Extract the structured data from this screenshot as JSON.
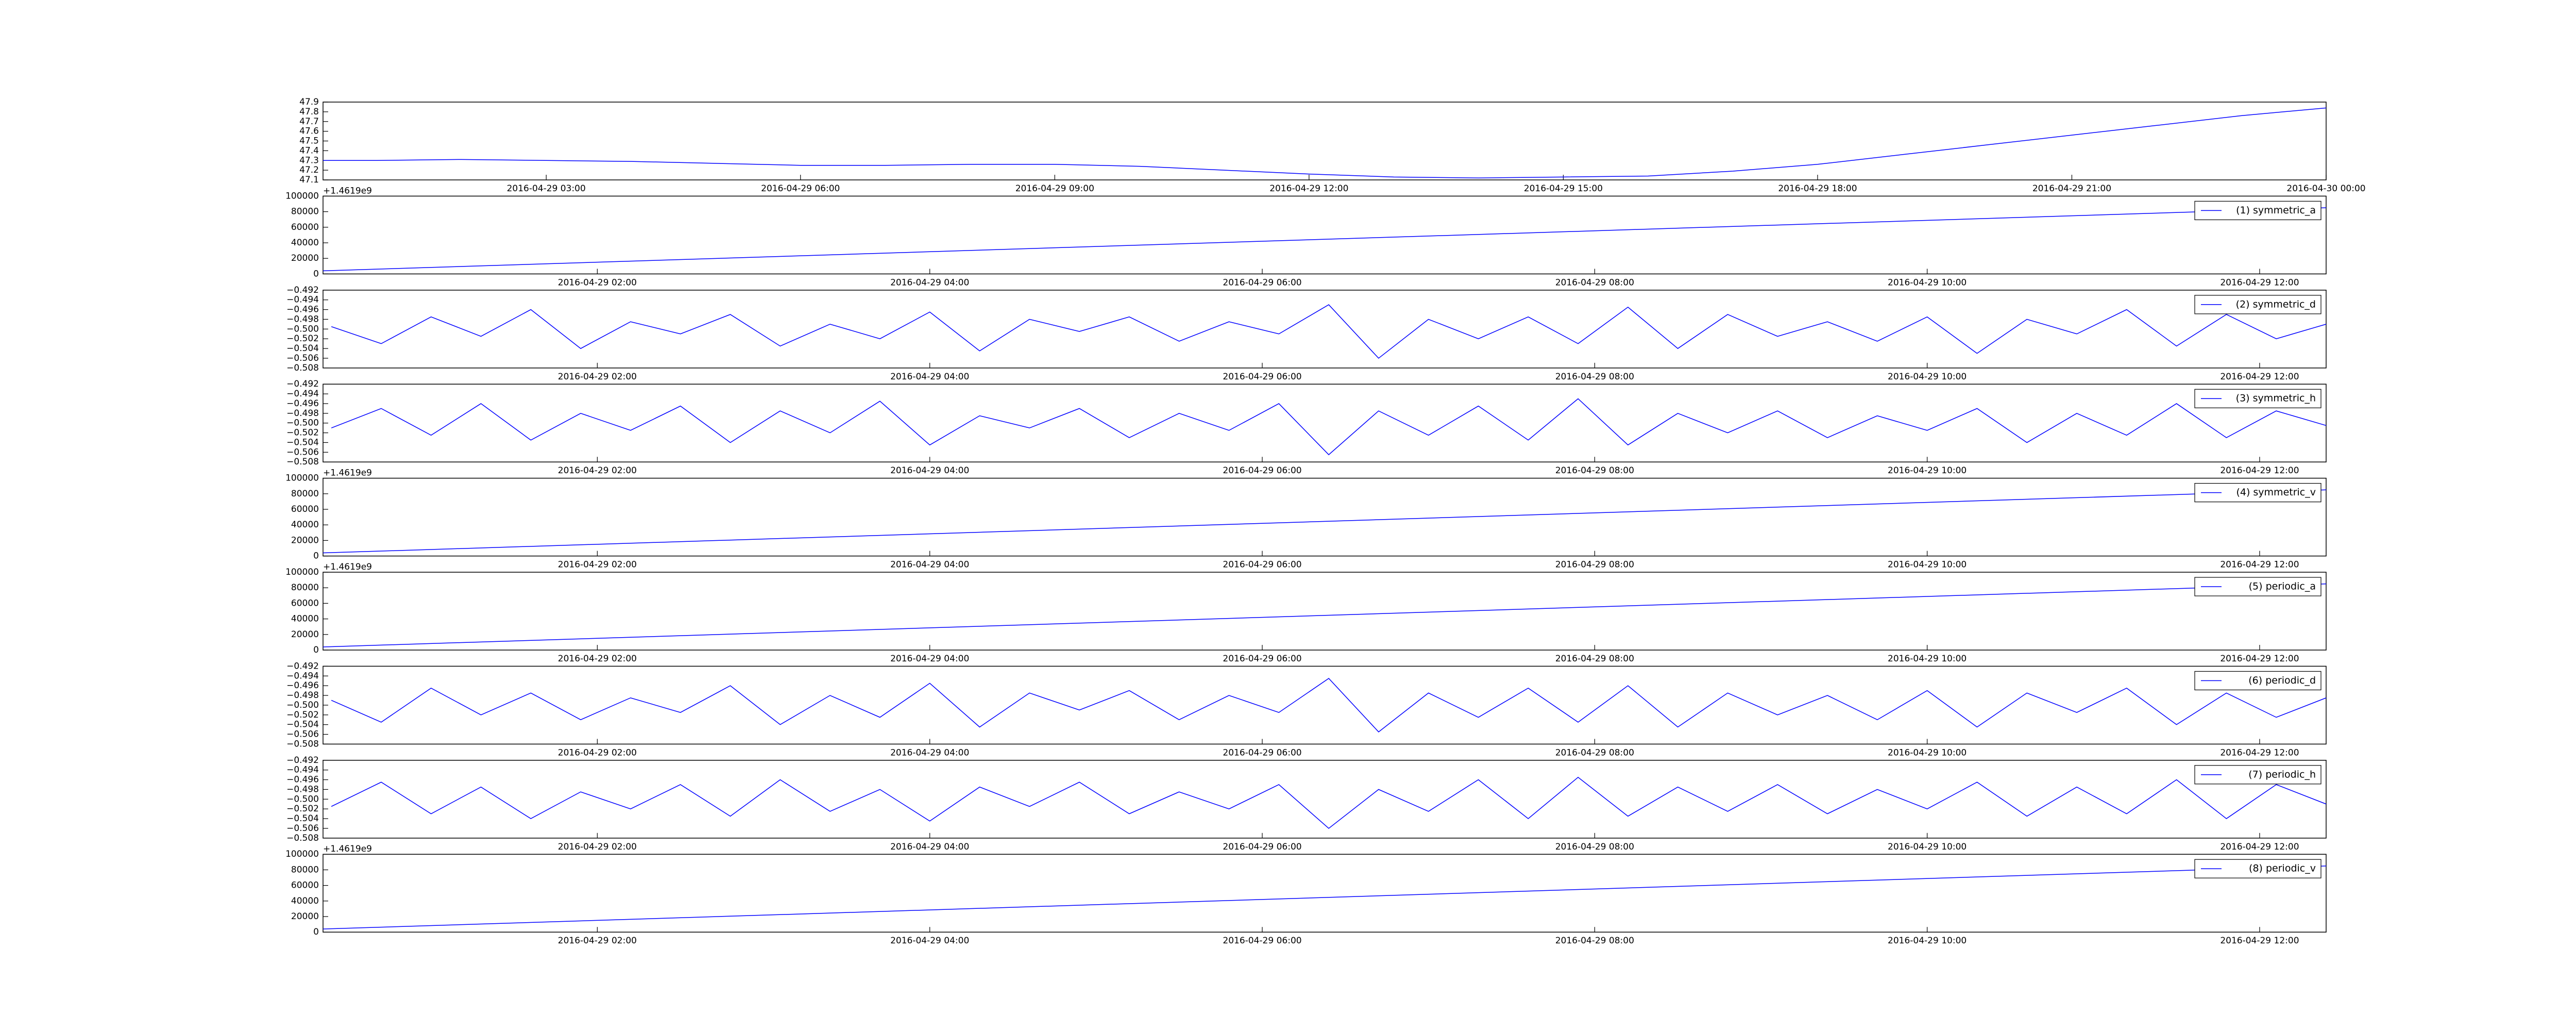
{
  "chart_data": [
    {
      "type": "line",
      "color": "#0000ff",
      "x": [
        "2016-04-29 00:22",
        "2016-04-29 01:00",
        "2016-04-29 02:00",
        "2016-04-29 03:00",
        "2016-04-29 04:00",
        "2016-04-29 05:00",
        "2016-04-29 06:00",
        "2016-04-29 07:00",
        "2016-04-29 08:00",
        "2016-04-29 09:00",
        "2016-04-29 10:00",
        "2016-04-29 11:00",
        "2016-04-29 12:00",
        "2016-04-29 13:00",
        "2016-04-29 14:00",
        "2016-04-29 15:00",
        "2016-04-29 16:00",
        "2016-04-29 17:00",
        "2016-04-29 18:00",
        "2016-04-29 19:00",
        "2016-04-29 20:00",
        "2016-04-29 21:00",
        "2016-04-29 22:00",
        "2016-04-29 23:00",
        "2016-04-30 00:00"
      ],
      "values": [
        47.3,
        47.3,
        47.31,
        47.3,
        47.29,
        47.27,
        47.25,
        47.25,
        47.26,
        47.26,
        47.24,
        47.2,
        47.16,
        47.13,
        47.12,
        47.13,
        47.14,
        47.19,
        47.26,
        47.36,
        47.46,
        47.56,
        47.66,
        47.76,
        47.84
      ],
      "xlim": [
        "2016-04-29 00:22",
        "2016-04-30 00:00"
      ],
      "xticks": [
        "2016-04-29 03:00",
        "2016-04-29 06:00",
        "2016-04-29 09:00",
        "2016-04-29 12:00",
        "2016-04-29 15:00",
        "2016-04-29 18:00",
        "2016-04-29 21:00",
        "2016-04-30 00:00"
      ],
      "ylim": [
        47.1,
        47.9
      ],
      "yticks": [
        47.1,
        47.2,
        47.3,
        47.4,
        47.5,
        47.6,
        47.7,
        47.8,
        47.9
      ],
      "grid": false
    },
    {
      "type": "line",
      "legend": "upper right",
      "y_offset_label": "+1.4619e9",
      "x": [
        "2016-04-29 00:21",
        "2016-04-29 12:24"
      ],
      "series": [
        {
          "name": "(1) symmetric_a",
          "color": "#0000ff",
          "values": [
            4000,
            85000
          ]
        }
      ],
      "xlim": [
        "2016-04-29 00:21",
        "2016-04-29 12:24"
      ],
      "xticks": [
        "2016-04-29 02:00",
        "2016-04-29 04:00",
        "2016-04-29 06:00",
        "2016-04-29 08:00",
        "2016-04-29 10:00",
        "2016-04-29 12:00"
      ],
      "ylim": [
        0,
        100000
      ],
      "yticks": [
        0,
        20000,
        40000,
        60000,
        80000,
        100000
      ],
      "grid": false
    },
    {
      "type": "line",
      "legend": "upper right",
      "x": [
        "2016-04-29 00:24",
        "2016-04-29 00:42",
        "2016-04-29 01:00",
        "2016-04-29 01:18",
        "2016-04-29 01:36",
        "2016-04-29 01:54",
        "2016-04-29 02:12",
        "2016-04-29 02:30",
        "2016-04-29 02:48",
        "2016-04-29 03:06",
        "2016-04-29 03:24",
        "2016-04-29 03:42",
        "2016-04-29 04:00",
        "2016-04-29 04:18",
        "2016-04-29 04:36",
        "2016-04-29 04:54",
        "2016-04-29 05:12",
        "2016-04-29 05:30",
        "2016-04-29 05:48",
        "2016-04-29 06:06",
        "2016-04-29 06:24",
        "2016-04-29 06:42",
        "2016-04-29 07:00",
        "2016-04-29 07:18",
        "2016-04-29 07:36",
        "2016-04-29 07:54",
        "2016-04-29 08:12",
        "2016-04-29 08:30",
        "2016-04-29 08:48",
        "2016-04-29 09:06",
        "2016-04-29 09:24",
        "2016-04-29 09:42",
        "2016-04-29 10:00",
        "2016-04-29 10:18",
        "2016-04-29 10:36",
        "2016-04-29 10:54",
        "2016-04-29 11:12",
        "2016-04-29 11:30",
        "2016-04-29 11:48",
        "2016-04-29 12:06",
        "2016-04-29 12:24"
      ],
      "series": [
        {
          "name": "(2) symmetric_d",
          "color": "#0000ff",
          "values": [
            -0.4995,
            -0.503,
            -0.4975,
            -0.5015,
            -0.496,
            -0.504,
            -0.4985,
            -0.501,
            -0.497,
            -0.5035,
            -0.499,
            -0.502,
            -0.4965,
            -0.5045,
            -0.498,
            -0.5005,
            -0.4975,
            -0.5025,
            -0.4985,
            -0.501,
            -0.495,
            -0.506,
            -0.498,
            -0.502,
            -0.4975,
            -0.503,
            -0.4955,
            -0.504,
            -0.497,
            -0.5015,
            -0.4985,
            -0.5025,
            -0.4975,
            -0.505,
            -0.498,
            -0.501,
            -0.496,
            -0.5035,
            -0.497,
            -0.502,
            -0.499
          ]
        }
      ],
      "xlim": [
        "2016-04-29 00:21",
        "2016-04-29 12:24"
      ],
      "xticks": [
        "2016-04-29 02:00",
        "2016-04-29 04:00",
        "2016-04-29 06:00",
        "2016-04-29 08:00",
        "2016-04-29 10:00",
        "2016-04-29 12:00"
      ],
      "ylim": [
        -0.508,
        -0.492
      ],
      "yticks": [
        {
          "value": -0.508,
          "label": "−0.508"
        },
        {
          "value": -0.506,
          "label": "−0.506"
        },
        {
          "value": -0.504,
          "label": "−0.504"
        },
        {
          "value": -0.502,
          "label": "−0.502"
        },
        {
          "value": -0.5,
          "label": "−0.500"
        },
        {
          "value": -0.498,
          "label": "−0.498"
        },
        {
          "value": -0.496,
          "label": "−0.496"
        },
        {
          "value": -0.494,
          "label": "−0.494"
        },
        {
          "value": -0.492,
          "label": "−0.492"
        }
      ],
      "grid": false
    },
    {
      "type": "line",
      "legend": "upper right",
      "x": [
        "2016-04-29 00:24",
        "2016-04-29 00:42",
        "2016-04-29 01:00",
        "2016-04-29 01:18",
        "2016-04-29 01:36",
        "2016-04-29 01:54",
        "2016-04-29 02:12",
        "2016-04-29 02:30",
        "2016-04-29 02:48",
        "2016-04-29 03:06",
        "2016-04-29 03:24",
        "2016-04-29 03:42",
        "2016-04-29 04:00",
        "2016-04-29 04:18",
        "2016-04-29 04:36",
        "2016-04-29 04:54",
        "2016-04-29 05:12",
        "2016-04-29 05:30",
        "2016-04-29 05:48",
        "2016-04-29 06:06",
        "2016-04-29 06:24",
        "2016-04-29 06:42",
        "2016-04-29 07:00",
        "2016-04-29 07:18",
        "2016-04-29 07:36",
        "2016-04-29 07:54",
        "2016-04-29 08:12",
        "2016-04-29 08:30",
        "2016-04-29 08:48",
        "2016-04-29 09:06",
        "2016-04-29 09:24",
        "2016-04-29 09:42",
        "2016-04-29 10:00",
        "2016-04-29 10:18",
        "2016-04-29 10:36",
        "2016-04-29 10:54",
        "2016-04-29 11:12",
        "2016-04-29 11:30",
        "2016-04-29 11:48",
        "2016-04-29 12:06",
        "2016-04-29 12:24"
      ],
      "series": [
        {
          "name": "(3) symmetric_h",
          "color": "#0000ff",
          "values": [
            -0.501,
            -0.497,
            -0.5025,
            -0.496,
            -0.5035,
            -0.498,
            -0.5015,
            -0.4965,
            -0.504,
            -0.4975,
            -0.502,
            -0.4955,
            -0.5045,
            -0.4985,
            -0.501,
            -0.497,
            -0.503,
            -0.498,
            -0.5015,
            -0.496,
            -0.5065,
            -0.4975,
            -0.5025,
            -0.4965,
            -0.5035,
            -0.495,
            -0.5045,
            -0.498,
            -0.502,
            -0.4975,
            -0.503,
            -0.4985,
            -0.5015,
            -0.497,
            -0.504,
            -0.498,
            -0.5025,
            -0.496,
            -0.503,
            -0.4975,
            -0.5005
          ]
        }
      ],
      "xlim": [
        "2016-04-29 00:21",
        "2016-04-29 12:24"
      ],
      "xticks": [
        "2016-04-29 02:00",
        "2016-04-29 04:00",
        "2016-04-29 06:00",
        "2016-04-29 08:00",
        "2016-04-29 10:00",
        "2016-04-29 12:00"
      ],
      "ylim": [
        -0.508,
        -0.492
      ],
      "yticks": [
        {
          "value": -0.508,
          "label": "−0.508"
        },
        {
          "value": -0.506,
          "label": "−0.506"
        },
        {
          "value": -0.504,
          "label": "−0.504"
        },
        {
          "value": -0.502,
          "label": "−0.502"
        },
        {
          "value": -0.5,
          "label": "−0.500"
        },
        {
          "value": -0.498,
          "label": "−0.498"
        },
        {
          "value": -0.496,
          "label": "−0.496"
        },
        {
          "value": -0.494,
          "label": "−0.494"
        },
        {
          "value": -0.492,
          "label": "−0.492"
        }
      ],
      "grid": false
    },
    {
      "type": "line",
      "legend": "upper right",
      "y_offset_label": "+1.4619e9",
      "x": [
        "2016-04-29 00:21",
        "2016-04-29 12:24"
      ],
      "series": [
        {
          "name": "(4) symmetric_v",
          "color": "#0000ff",
          "values": [
            4000,
            85000
          ]
        }
      ],
      "xlim": [
        "2016-04-29 00:21",
        "2016-04-29 12:24"
      ],
      "xticks": [
        "2016-04-29 02:00",
        "2016-04-29 04:00",
        "2016-04-29 06:00",
        "2016-04-29 08:00",
        "2016-04-29 10:00",
        "2016-04-29 12:00"
      ],
      "ylim": [
        0,
        100000
      ],
      "yticks": [
        0,
        20000,
        40000,
        60000,
        80000,
        100000
      ],
      "grid": false
    },
    {
      "type": "line",
      "legend": "upper right",
      "y_offset_label": "+1.4619e9",
      "x": [
        "2016-04-29 00:21",
        "2016-04-29 12:24"
      ],
      "series": [
        {
          "name": "(5) periodic_a",
          "color": "#0000ff",
          "values": [
            4000,
            85000
          ]
        }
      ],
      "xlim": [
        "2016-04-29 00:21",
        "2016-04-29 12:24"
      ],
      "xticks": [
        "2016-04-29 02:00",
        "2016-04-29 04:00",
        "2016-04-29 06:00",
        "2016-04-29 08:00",
        "2016-04-29 10:00",
        "2016-04-29 12:00"
      ],
      "ylim": [
        0,
        100000
      ],
      "yticks": [
        0,
        20000,
        40000,
        60000,
        80000,
        100000
      ],
      "grid": false
    },
    {
      "type": "line",
      "legend": "upper right",
      "x": [
        "2016-04-29 00:24",
        "2016-04-29 00:42",
        "2016-04-29 01:00",
        "2016-04-29 01:18",
        "2016-04-29 01:36",
        "2016-04-29 01:54",
        "2016-04-29 02:12",
        "2016-04-29 02:30",
        "2016-04-29 02:48",
        "2016-04-29 03:06",
        "2016-04-29 03:24",
        "2016-04-29 03:42",
        "2016-04-29 04:00",
        "2016-04-29 04:18",
        "2016-04-29 04:36",
        "2016-04-29 04:54",
        "2016-04-29 05:12",
        "2016-04-29 05:30",
        "2016-04-29 05:48",
        "2016-04-29 06:06",
        "2016-04-29 06:24",
        "2016-04-29 06:42",
        "2016-04-29 07:00",
        "2016-04-29 07:18",
        "2016-04-29 07:36",
        "2016-04-29 07:54",
        "2016-04-29 08:12",
        "2016-04-29 08:30",
        "2016-04-29 08:48",
        "2016-04-29 09:06",
        "2016-04-29 09:24",
        "2016-04-29 09:42",
        "2016-04-29 10:00",
        "2016-04-29 10:18",
        "2016-04-29 10:36",
        "2016-04-29 10:54",
        "2016-04-29 11:12",
        "2016-04-29 11:30",
        "2016-04-29 11:48",
        "2016-04-29 12:06",
        "2016-04-29 12:24"
      ],
      "series": [
        {
          "name": "(6) periodic_d",
          "color": "#0000ff",
          "values": [
            -0.499,
            -0.5035,
            -0.4965,
            -0.502,
            -0.4975,
            -0.503,
            -0.4985,
            -0.5015,
            -0.496,
            -0.504,
            -0.498,
            -0.5025,
            -0.4955,
            -0.5045,
            -0.4975,
            -0.501,
            -0.497,
            -0.503,
            -0.498,
            -0.5015,
            -0.4945,
            -0.5055,
            -0.4975,
            -0.5025,
            -0.4965,
            -0.5035,
            -0.496,
            -0.5045,
            -0.4975,
            -0.502,
            -0.498,
            -0.503,
            -0.497,
            -0.5045,
            -0.4975,
            -0.5015,
            -0.4965,
            -0.504,
            -0.4975,
            -0.5025,
            -0.4985
          ]
        }
      ],
      "xlim": [
        "2016-04-29 00:21",
        "2016-04-29 12:24"
      ],
      "xticks": [
        "2016-04-29 02:00",
        "2016-04-29 04:00",
        "2016-04-29 06:00",
        "2016-04-29 08:00",
        "2016-04-29 10:00",
        "2016-04-29 12:00"
      ],
      "ylim": [
        -0.508,
        -0.492
      ],
      "yticks": [
        {
          "value": -0.508,
          "label": "−0.508"
        },
        {
          "value": -0.506,
          "label": "−0.506"
        },
        {
          "value": -0.504,
          "label": "−0.504"
        },
        {
          "value": -0.502,
          "label": "−0.502"
        },
        {
          "value": -0.5,
          "label": "−0.500"
        },
        {
          "value": -0.498,
          "label": "−0.498"
        },
        {
          "value": -0.496,
          "label": "−0.496"
        },
        {
          "value": -0.494,
          "label": "−0.494"
        },
        {
          "value": -0.492,
          "label": "−0.492"
        }
      ],
      "grid": false
    },
    {
      "type": "line",
      "legend": "upper right",
      "x": [
        "2016-04-29 00:24",
        "2016-04-29 00:42",
        "2016-04-29 01:00",
        "2016-04-29 01:18",
        "2016-04-29 01:36",
        "2016-04-29 01:54",
        "2016-04-29 02:12",
        "2016-04-29 02:30",
        "2016-04-29 02:48",
        "2016-04-29 03:06",
        "2016-04-29 03:24",
        "2016-04-29 03:42",
        "2016-04-29 04:00",
        "2016-04-29 04:18",
        "2016-04-29 04:36",
        "2016-04-29 04:54",
        "2016-04-29 05:12",
        "2016-04-29 05:30",
        "2016-04-29 05:48",
        "2016-04-29 06:06",
        "2016-04-29 06:24",
        "2016-04-29 06:42",
        "2016-04-29 07:00",
        "2016-04-29 07:18",
        "2016-04-29 07:36",
        "2016-04-29 07:54",
        "2016-04-29 08:12",
        "2016-04-29 08:30",
        "2016-04-29 08:48",
        "2016-04-29 09:06",
        "2016-04-29 09:24",
        "2016-04-29 09:42",
        "2016-04-29 10:00",
        "2016-04-29 10:18",
        "2016-04-29 10:36",
        "2016-04-29 10:54",
        "2016-04-29 11:12",
        "2016-04-29 11:30",
        "2016-04-29 11:48",
        "2016-04-29 12:06",
        "2016-04-29 12:24"
      ],
      "series": [
        {
          "name": "(7) periodic_h",
          "color": "#0000ff",
          "values": [
            -0.5015,
            -0.4965,
            -0.503,
            -0.4975,
            -0.504,
            -0.4985,
            -0.502,
            -0.497,
            -0.5035,
            -0.496,
            -0.5025,
            -0.498,
            -0.5045,
            -0.4975,
            -0.5015,
            -0.4965,
            -0.503,
            -0.4985,
            -0.502,
            -0.497,
            -0.506,
            -0.498,
            -0.5025,
            -0.496,
            -0.504,
            -0.4955,
            -0.5035,
            -0.4975,
            -0.5025,
            -0.497,
            -0.503,
            -0.498,
            -0.502,
            -0.4965,
            -0.5035,
            -0.4975,
            -0.503,
            -0.496,
            -0.504,
            -0.497,
            -0.501
          ]
        }
      ],
      "xlim": [
        "2016-04-29 00:21",
        "2016-04-29 12:24"
      ],
      "xticks": [
        "2016-04-29 02:00",
        "2016-04-29 04:00",
        "2016-04-29 06:00",
        "2016-04-29 08:00",
        "2016-04-29 10:00",
        "2016-04-29 12:00"
      ],
      "ylim": [
        -0.508,
        -0.492
      ],
      "yticks": [
        {
          "value": -0.508,
          "label": "−0.508"
        },
        {
          "value": -0.506,
          "label": "−0.506"
        },
        {
          "value": -0.504,
          "label": "−0.504"
        },
        {
          "value": -0.502,
          "label": "−0.502"
        },
        {
          "value": -0.5,
          "label": "−0.500"
        },
        {
          "value": -0.498,
          "label": "−0.498"
        },
        {
          "value": -0.496,
          "label": "−0.496"
        },
        {
          "value": -0.494,
          "label": "−0.494"
        },
        {
          "value": -0.492,
          "label": "−0.492"
        }
      ],
      "grid": false
    },
    {
      "type": "line",
      "legend": "upper right",
      "y_offset_label": "+1.4619e9",
      "x": [
        "2016-04-29 00:21",
        "2016-04-29 12:24"
      ],
      "series": [
        {
          "name": "(8) periodic_v",
          "color": "#0000ff",
          "values": [
            4000,
            85000
          ]
        }
      ],
      "xlim": [
        "2016-04-29 00:21",
        "2016-04-29 12:24"
      ],
      "xticks": [
        "2016-04-29 02:00",
        "2016-04-29 04:00",
        "2016-04-29 06:00",
        "2016-04-29 08:00",
        "2016-04-29 10:00",
        "2016-04-29 12:00"
      ],
      "ylim": [
        0,
        100000
      ],
      "yticks": [
        0,
        20000,
        40000,
        60000,
        80000,
        100000
      ],
      "grid": false
    }
  ]
}
